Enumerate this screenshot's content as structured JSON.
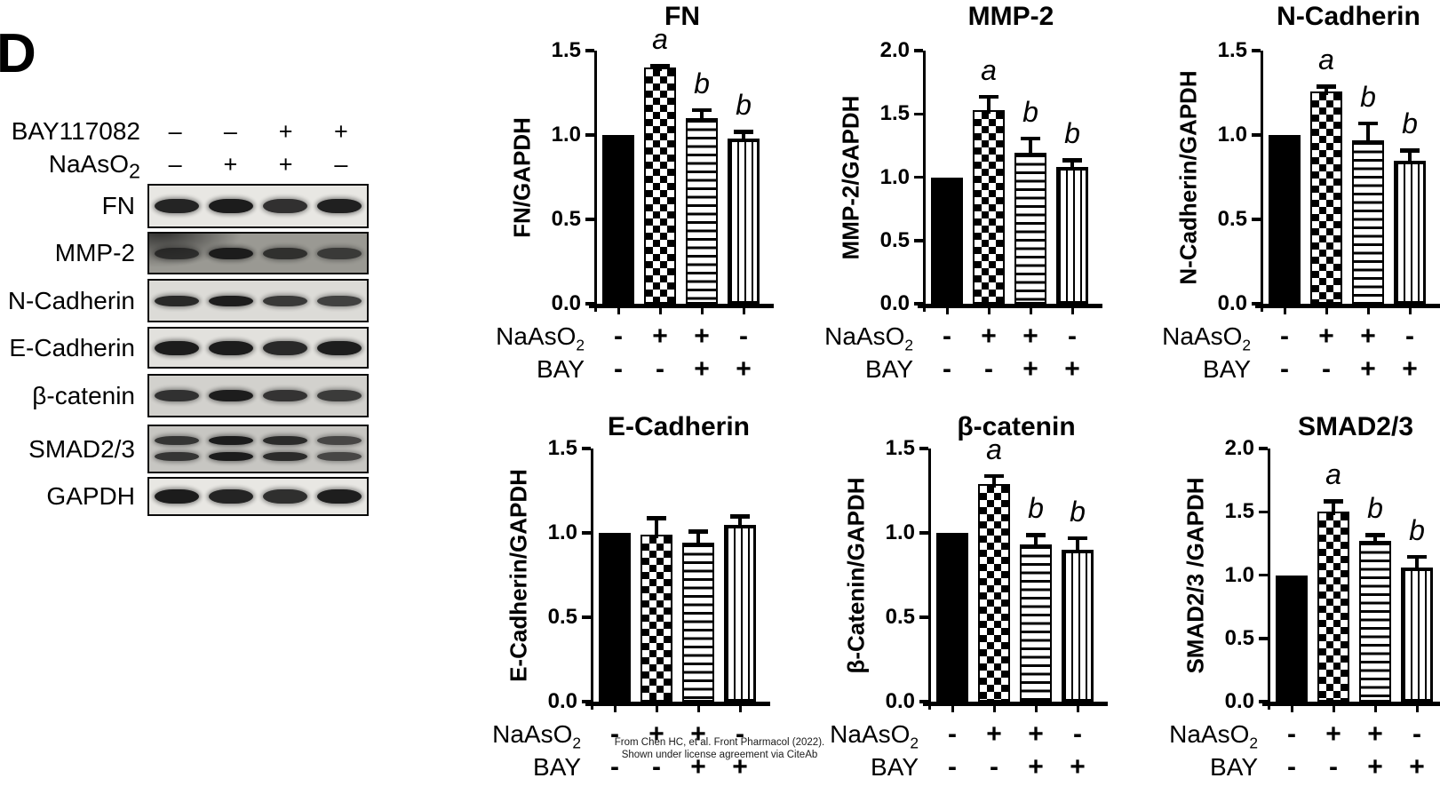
{
  "panel_label": "D",
  "colors": {
    "ink": "#000000",
    "background": "#ffffff"
  },
  "blot": {
    "treatment_rows": [
      {
        "label": "BAY117082",
        "symbols": [
          "–",
          "–",
          "+",
          "+"
        ]
      },
      {
        "label": "NaAsO",
        "label_sub": "2",
        "symbols": [
          "–",
          "+",
          "+",
          "–"
        ]
      }
    ],
    "rows": [
      {
        "label": "FN",
        "bg": "#e8e7e3",
        "band_height": 16,
        "double": false,
        "smudge": false,
        "opacities": [
          0.93,
          0.97,
          0.87,
          0.95
        ]
      },
      {
        "label": "MMP-2",
        "bg": "#9a9993",
        "band_height": 13,
        "double": false,
        "smudge": true,
        "opacities": [
          0.78,
          0.95,
          0.8,
          0.72
        ]
      },
      {
        "label": "N-Cadherin",
        "bg": "#dcdbd7",
        "band_height": 12,
        "double": false,
        "smudge": false,
        "opacities": [
          0.9,
          0.96,
          0.82,
          0.78
        ]
      },
      {
        "label": "E-Cadherin",
        "bg": "#e2e1dd",
        "band_height": 16,
        "double": false,
        "smudge": false,
        "opacities": [
          0.97,
          0.97,
          0.9,
          0.96
        ]
      },
      {
        "label": "β-catenin",
        "bg": "#d2d1cd",
        "band_height": 13,
        "double": false,
        "smudge": false,
        "opacities": [
          0.85,
          0.96,
          0.84,
          0.8
        ]
      },
      {
        "label": "SMAD2/3",
        "bg": "#c7c6c2",
        "band_height": 12,
        "double": true,
        "smudge": false,
        "opacities": [
          0.82,
          0.96,
          0.88,
          0.72
        ]
      },
      {
        "label": "GAPDH",
        "bg": "#e8e7e3",
        "band_height": 16,
        "double": false,
        "smudge": false,
        "opacities": [
          0.97,
          0.93,
          0.88,
          0.96
        ]
      }
    ]
  },
  "chart_data": [
    {
      "type": "bar",
      "title": "FN",
      "ylabel": "FN/GAPDH",
      "xlabel": "",
      "ylim": [
        0,
        1.5
      ],
      "yticks": [
        "0.0",
        "0.5",
        "1.0",
        "1.5"
      ],
      "grid": false,
      "legend": "none",
      "categories": [
        "NaAsO2 - / BAY -",
        "NaAsO2 + / BAY -",
        "NaAsO2 + / BAY +",
        "NaAsO2 - / BAY +"
      ],
      "values": [
        1.0,
        1.4,
        1.1,
        0.98
      ],
      "errors": [
        0,
        0.02,
        0.06,
        0.05
      ],
      "sig_letters": [
        "",
        "a",
        "b",
        "b"
      ],
      "bar_styles": [
        "solid-black",
        "checkerboard",
        "h-stripes",
        "v-stripes"
      ],
      "x_rows": [
        {
          "label": "NaAsO",
          "label_sub": "2",
          "symbols": [
            "-",
            "+",
            "+",
            "-"
          ]
        },
        {
          "label": "BAY",
          "symbols": [
            "-",
            "-",
            "+",
            "+"
          ]
        }
      ]
    },
    {
      "type": "bar",
      "title": "MMP-2",
      "ylabel": "MMP-2/GAPDH",
      "xlabel": "",
      "ylim": [
        0,
        2.0
      ],
      "yticks": [
        "0.0",
        "0.5",
        "1.0",
        "1.5",
        "2.0"
      ],
      "grid": false,
      "legend": "none",
      "categories": [
        "NaAsO2 - / BAY -",
        "NaAsO2 + / BAY -",
        "NaAsO2 + / BAY +",
        "NaAsO2 - / BAY +"
      ],
      "values": [
        1.0,
        1.53,
        1.19,
        1.08
      ],
      "errors": [
        0,
        0.12,
        0.13,
        0.07
      ],
      "sig_letters": [
        "",
        "a",
        "b",
        "b"
      ],
      "bar_styles": [
        "solid-black",
        "checkerboard",
        "h-stripes",
        "v-stripes"
      ],
      "x_rows": [
        {
          "label": "NaAsO",
          "label_sub": "2",
          "symbols": [
            "-",
            "+",
            "+",
            "-"
          ]
        },
        {
          "label": "BAY",
          "symbols": [
            "-",
            "-",
            "+",
            "+"
          ]
        }
      ]
    },
    {
      "type": "bar",
      "title": "N-Cadherin",
      "ylabel": "N-Cadherin/GAPDH",
      "xlabel": "",
      "ylim": [
        0,
        1.5
      ],
      "yticks": [
        "0.0",
        "0.5",
        "1.0",
        "1.5"
      ],
      "grid": false,
      "legend": "none",
      "categories": [
        "NaAsO2 - / BAY -",
        "NaAsO2 + / BAY -",
        "NaAsO2 + / BAY +",
        "NaAsO2 - / BAY +"
      ],
      "values": [
        1.0,
        1.26,
        0.97,
        0.85
      ],
      "errors": [
        0,
        0.04,
        0.11,
        0.07
      ],
      "sig_letters": [
        "",
        "a",
        "b",
        "b"
      ],
      "bar_styles": [
        "solid-black",
        "checkerboard",
        "h-stripes",
        "v-stripes"
      ],
      "x_rows": [
        {
          "label": "NaAsO",
          "label_sub": "2",
          "symbols": [
            "-",
            "+",
            "+",
            "-"
          ]
        },
        {
          "label": "BAY",
          "symbols": [
            "-",
            "-",
            "+",
            "+"
          ]
        }
      ]
    },
    {
      "type": "bar",
      "title": "E-Cadherin",
      "ylabel": "E-Cadherin/GAPDH",
      "xlabel": "",
      "ylim": [
        0,
        1.5
      ],
      "yticks": [
        "0.0",
        "0.5",
        "1.0",
        "1.5"
      ],
      "grid": false,
      "legend": "none",
      "categories": [
        "NaAsO2 - / BAY -",
        "NaAsO2 + / BAY -",
        "NaAsO2 + / BAY +",
        "NaAsO2 - / BAY +"
      ],
      "values": [
        1.0,
        0.99,
        0.94,
        1.05
      ],
      "errors": [
        0,
        0.11,
        0.08,
        0.06
      ],
      "sig_letters": [
        "",
        "",
        "",
        ""
      ],
      "bar_styles": [
        "solid-black",
        "checkerboard",
        "h-stripes",
        "v-stripes"
      ],
      "x_rows": [
        {
          "label": "NaAsO",
          "label_sub": "2",
          "symbols": [
            "-",
            "+",
            "+",
            "-"
          ]
        },
        {
          "label": "BAY",
          "symbols": [
            "-",
            "-",
            "+",
            "+"
          ]
        }
      ]
    },
    {
      "type": "bar",
      "title": "β-catenin",
      "ylabel": "β-Catenin/GAPDH",
      "xlabel": "",
      "ylim": [
        0,
        1.5
      ],
      "yticks": [
        "0.0",
        "0.5",
        "1.0",
        "1.5"
      ],
      "grid": false,
      "legend": "none",
      "categories": [
        "NaAsO2 - / BAY -",
        "NaAsO2 + / BAY -",
        "NaAsO2 + / BAY +",
        "NaAsO2 - / BAY +"
      ],
      "values": [
        1.0,
        1.29,
        0.93,
        0.9
      ],
      "errors": [
        0,
        0.06,
        0.07,
        0.08
      ],
      "sig_letters": [
        "",
        "a",
        "b",
        "b"
      ],
      "bar_styles": [
        "solid-black",
        "checkerboard",
        "h-stripes",
        "v-stripes"
      ],
      "x_rows": [
        {
          "label": "NaAsO",
          "label_sub": "2",
          "symbols": [
            "-",
            "+",
            "+",
            "-"
          ]
        },
        {
          "label": "BAY",
          "symbols": [
            "-",
            "-",
            "+",
            "+"
          ]
        }
      ]
    },
    {
      "type": "bar",
      "title": "SMAD2/3",
      "ylabel": "SMAD2/3 /GAPDH",
      "xlabel": "",
      "ylim": [
        0,
        2.0
      ],
      "yticks": [
        "0.0",
        "0.5",
        "1.0",
        "1.5",
        "2.0"
      ],
      "grid": false,
      "legend": "none",
      "categories": [
        "NaAsO2 - / BAY -",
        "NaAsO2 + / BAY -",
        "NaAsO2 + / BAY +",
        "NaAsO2 - / BAY +"
      ],
      "values": [
        1.0,
        1.5,
        1.27,
        1.06
      ],
      "errors": [
        0,
        0.1,
        0.06,
        0.1
      ],
      "sig_letters": [
        "",
        "a",
        "b",
        "b"
      ],
      "bar_styles": [
        "solid-black",
        "checkerboard",
        "h-stripes",
        "v-stripes"
      ],
      "x_rows": [
        {
          "label": "NaAsO",
          "label_sub": "2",
          "symbols": [
            "-",
            "+",
            "+",
            "-"
          ]
        },
        {
          "label": "BAY",
          "symbols": [
            "-",
            "-",
            "+",
            "+"
          ]
        }
      ]
    }
  ],
  "caption": {
    "line1": "From Chen HC, et al. Front Pharmacol (2022).",
    "line2": "Shown under license agreement via CiteAb"
  }
}
